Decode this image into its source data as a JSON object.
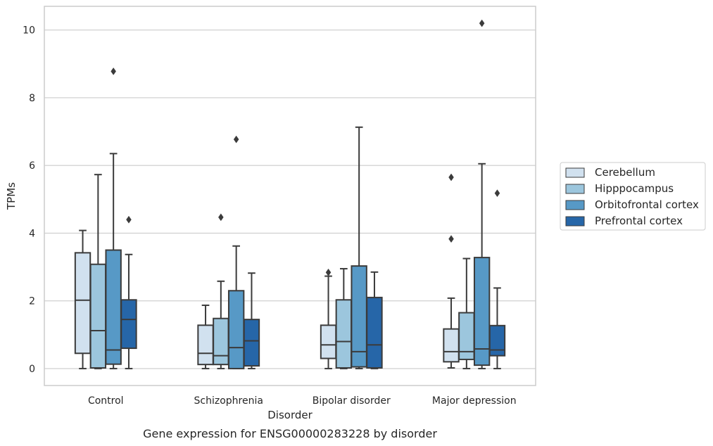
{
  "chart_data": {
    "type": "boxplot",
    "caption": "Gene expression for ENSG00000283228 by disorder",
    "xlabel": "Disorder",
    "ylabel": "TPMs",
    "ylim": [
      -0.5,
      10.7
    ],
    "yticks": [
      0,
      2,
      4,
      6,
      8,
      10
    ],
    "grid": "horizontal",
    "legend_position": "right",
    "categories": [
      "Control",
      "Schizophrenia",
      "Bipolar disorder",
      "Major depression"
    ],
    "series": [
      {
        "name": "Cerebellum",
        "color": "#d1e1ef",
        "boxes": [
          {
            "whislo": 0.0,
            "q1": 0.45,
            "med": 2.02,
            "q3": 3.42,
            "whishi": 4.08,
            "fliers": []
          },
          {
            "whislo": 0.0,
            "q1": 0.12,
            "med": 0.45,
            "q3": 1.28,
            "whishi": 1.87,
            "fliers": []
          },
          {
            "whislo": 0.0,
            "q1": 0.3,
            "med": 0.7,
            "q3": 1.28,
            "whishi": 2.73,
            "fliers": [
              2.84
            ]
          },
          {
            "whislo": 0.02,
            "q1": 0.2,
            "med": 0.5,
            "q3": 1.17,
            "whishi": 2.08,
            "fliers": [
              3.83,
              5.65
            ]
          }
        ]
      },
      {
        "name": "Hipppocampus",
        "color": "#9cc6dd",
        "boxes": [
          {
            "whislo": 0.0,
            "q1": 0.02,
            "med": 1.12,
            "q3": 3.08,
            "whishi": 5.73,
            "fliers": []
          },
          {
            "whislo": 0.0,
            "q1": 0.12,
            "med": 0.38,
            "q3": 1.48,
            "whishi": 2.58,
            "fliers": [
              4.47
            ]
          },
          {
            "whislo": 0.0,
            "q1": 0.02,
            "med": 0.8,
            "q3": 2.03,
            "whishi": 2.95,
            "fliers": []
          },
          {
            "whislo": 0.0,
            "q1": 0.27,
            "med": 0.5,
            "q3": 1.65,
            "whishi": 3.25,
            "fliers": []
          }
        ]
      },
      {
        "name": "Orbitofrontal cortex",
        "color": "#5799c6",
        "boxes": [
          {
            "whislo": 0.0,
            "q1": 0.13,
            "med": 0.55,
            "q3": 3.5,
            "whishi": 6.35,
            "fliers": [
              8.78
            ]
          },
          {
            "whislo": 0.0,
            "q1": 0.0,
            "med": 0.62,
            "q3": 2.3,
            "whishi": 3.62,
            "fliers": [
              6.77
            ]
          },
          {
            "whislo": 0.0,
            "q1": 0.05,
            "med": 0.5,
            "q3": 3.03,
            "whishi": 7.13,
            "fliers": []
          },
          {
            "whislo": 0.0,
            "q1": 0.1,
            "med": 0.58,
            "q3": 3.28,
            "whishi": 6.05,
            "fliers": [
              10.2
            ]
          }
        ]
      },
      {
        "name": "Prefrontal cortex",
        "color": "#2666a8",
        "boxes": [
          {
            "whislo": 0.0,
            "q1": 0.6,
            "med": 1.45,
            "q3": 2.03,
            "whishi": 3.37,
            "fliers": [
              4.4
            ]
          },
          {
            "whislo": 0.0,
            "q1": 0.08,
            "med": 0.82,
            "q3": 1.45,
            "whishi": 2.82,
            "fliers": []
          },
          {
            "whislo": 0.0,
            "q1": 0.02,
            "med": 0.7,
            "q3": 2.1,
            "whishi": 2.85,
            "fliers": []
          },
          {
            "whislo": 0.0,
            "q1": 0.38,
            "med": 0.55,
            "q3": 1.27,
            "whishi": 2.38,
            "fliers": [
              5.18
            ]
          }
        ]
      }
    ]
  }
}
